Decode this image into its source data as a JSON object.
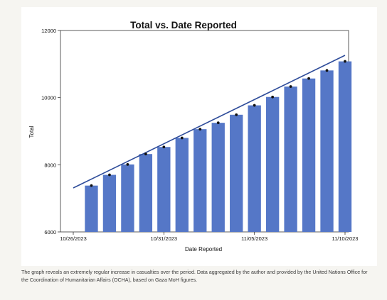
{
  "chart_data": {
    "type": "bar",
    "title": "Total vs. Date Reported",
    "xlabel": "Date Reported",
    "ylabel": "Total",
    "ylim": [
      6000,
      12000
    ],
    "yticks": [
      6000,
      8000,
      10000,
      12000
    ],
    "ytick_labels": [
      "6000",
      "8000",
      "10000",
      "12000"
    ],
    "xlim": [
      "2023-10-26",
      "2023-11-10"
    ],
    "xticks": [
      "2023-10-26",
      "2023-10-31",
      "2023-11-05",
      "2023-11-10"
    ],
    "xtick_labels": [
      "10/26/2023",
      "10/31/2023",
      "11/05/2023",
      "11/10/2023"
    ],
    "categories": [
      "2023-10-27",
      "2023-10-28",
      "2023-10-29",
      "2023-10-30",
      "2023-10-31",
      "2023-11-01",
      "2023-11-02",
      "2023-11-03",
      "2023-11-04",
      "2023-11-05",
      "2023-11-06",
      "2023-11-07",
      "2023-11-08",
      "2023-11-09",
      "2023-11-10"
    ],
    "values": [
      7380,
      7700,
      8010,
      8320,
      8530,
      8800,
      9060,
      9250,
      9490,
      9770,
      10020,
      10330,
      10570,
      10810,
      11080
    ],
    "trend_line": {
      "x": [
        "2023-10-26",
        "2023-11-10"
      ],
      "y": [
        7310,
        11260
      ]
    },
    "bar_color": "#5577c7",
    "marker_color": "#111111",
    "trend_color": "#2e4c9a",
    "grid": false,
    "legend": "none"
  },
  "caption": "The graph reveals an extremely regular increase in casualties over the period. Data aggregated by the author and provided by the United Nations Office for the Coordination of Humanitarian Affairs (OCHA), based on Gaza MoH figures."
}
